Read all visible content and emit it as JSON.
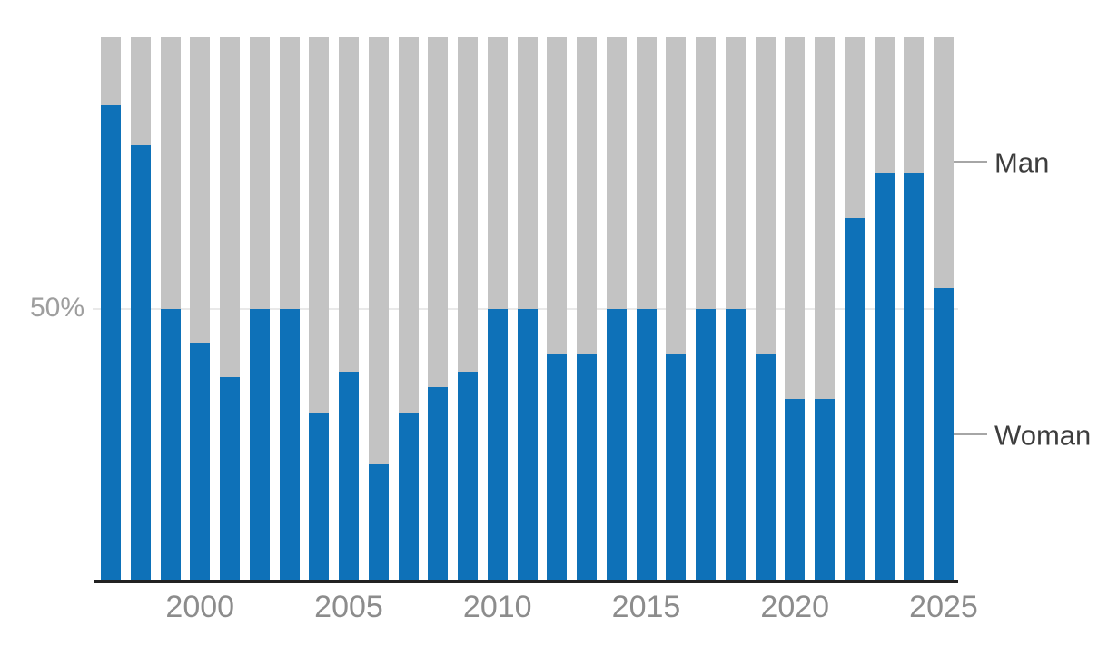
{
  "chart": {
    "y_axis_label": "50%",
    "legend": {
      "man": "Man",
      "woman": "Woman"
    }
  },
  "colors": {
    "woman_bar": "#0E71B8",
    "man_bar": "#C3C3C3",
    "gridline": "#E9E9E9",
    "axis_line": "#222222",
    "tick_text": "#8C8C8C",
    "legend_text": "#3D3D3D"
  },
  "chart_data": {
    "type": "bar",
    "stacked": true,
    "stack_total": 100,
    "title": "",
    "xlabel": "",
    "ylabel": "",
    "ylim": [
      0,
      100
    ],
    "grid": "single horizontal gridline at 50%",
    "legend_position": "right, leader lines pointing at last bar segments",
    "categories": [
      "1997",
      "1998",
      "1999",
      "2000",
      "2001",
      "2002",
      "2003",
      "2004",
      "2005",
      "2006",
      "2007",
      "2008",
      "2009",
      "2010",
      "2011",
      "2012",
      "2013",
      "2014",
      "2015",
      "2016",
      "2017",
      "2018",
      "2019",
      "2020",
      "2021",
      "2022",
      "2023",
      "2024",
      "2025"
    ],
    "series": [
      {
        "name": "Woman",
        "color": "#0E71B8",
        "values": [
          87.5,
          80,
          50,
          43.6,
          37.4,
          50,
          50,
          30.7,
          38.4,
          21.3,
          30.7,
          35.5,
          38.4,
          50,
          50,
          41.5,
          41.5,
          50,
          50,
          41.5,
          50,
          50,
          41.5,
          33.3,
          33.3,
          66.7,
          75,
          75,
          53.8
        ]
      },
      {
        "name": "Man",
        "color": "#C3C3C3",
        "values": [
          12.5,
          20,
          50,
          56.4,
          62.6,
          50,
          50,
          69.3,
          61.6,
          78.7,
          69.3,
          64.5,
          61.6,
          50,
          50,
          58.5,
          58.5,
          50,
          50,
          58.5,
          50,
          50,
          58.5,
          66.7,
          66.7,
          33.3,
          25,
          25,
          46.2
        ]
      }
    ],
    "x_tick_labels": [
      {
        "label": "2000",
        "index": 3
      },
      {
        "label": "2005",
        "index": 8
      },
      {
        "label": "2010",
        "index": 13
      },
      {
        "label": "2015",
        "index": 18
      },
      {
        "label": "2020",
        "index": 23
      },
      {
        "label": "2025",
        "index": 28
      }
    ],
    "y_gridlines": [
      50
    ]
  }
}
